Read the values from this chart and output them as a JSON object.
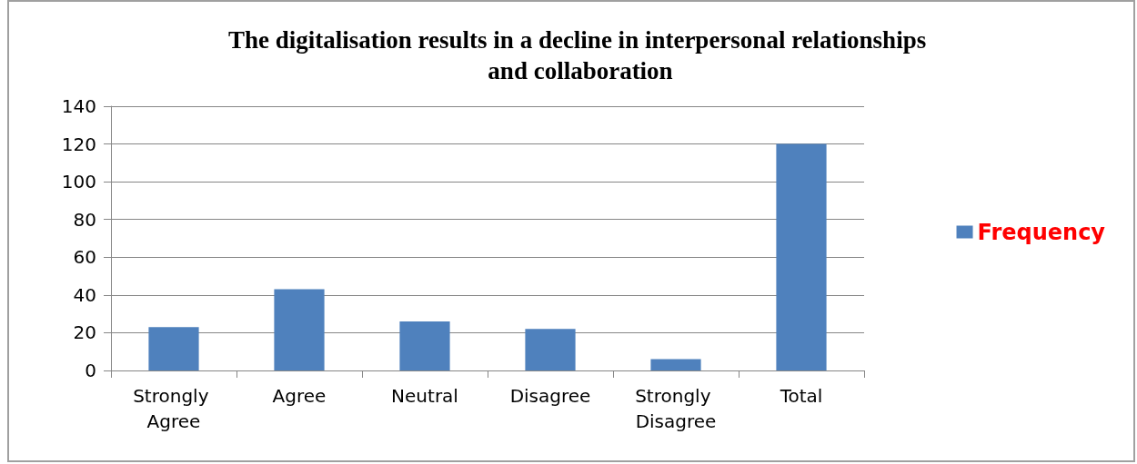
{
  "chart_data": {
    "type": "bar",
    "title": "The digitalisation results in a decline in interpersonal relationships and collaboration",
    "categories": [
      "Strongly Agree",
      "Agree",
      "Neutral",
      "Disagree",
      "Strongly Disagree",
      "Total"
    ],
    "series": [
      {
        "name": "Frequency",
        "color": "#4f81bd",
        "values": [
          23,
          43,
          26,
          22,
          6,
          120
        ]
      }
    ],
    "ylim": [
      0,
      140
    ],
    "yticks": [
      0,
      20,
      40,
      60,
      80,
      100,
      120,
      140
    ],
    "grid": "y",
    "legend": "right"
  }
}
